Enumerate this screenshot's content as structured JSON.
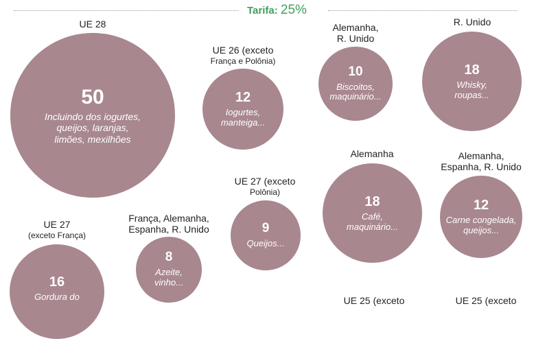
{
  "header": {
    "tarifa_label": "Tarifa:",
    "tarifa_value": "25%"
  },
  "groups": [
    {
      "region_line1": "UE 28",
      "region_line2": "",
      "count": "50",
      "desc_line1": "Incluindo dos iogurtes,",
      "desc_line2": "queijos, laranjas,",
      "desc_line3": "limões, mexilhões"
    },
    {
      "region_line1": "UE 26 (exceto",
      "region_line2": "França e Polônia)",
      "count": "12",
      "desc_line1": "Iogurtes,",
      "desc_line2": "manteiga..."
    },
    {
      "region_line1": "Alemanha,",
      "region_line2": "R. Unido",
      "count": "10",
      "desc_line1": "Biscoitos,",
      "desc_line2": "maquinário..."
    },
    {
      "region_line1": "R. Unido",
      "region_line2": "",
      "count": "18",
      "desc_line1": "Whisky,",
      "desc_line2": "roupas..."
    },
    {
      "region_line1": "UE 27 (exceto",
      "region_line2": "Polônia)",
      "count": "9",
      "desc_line1": "Queijos...",
      "desc_line2": ""
    },
    {
      "region_line1": "Alemanha",
      "region_line2": "",
      "count": "18",
      "desc_line1": "Café,",
      "desc_line2": "maquinário..."
    },
    {
      "region_line1": "Alemanha,",
      "region_line2": "Espanha, R. Unido",
      "count": "12",
      "desc_line1": "Carne congelada,",
      "desc_line2": "queijos..."
    },
    {
      "region_line1": "UE 27",
      "region_line2": "(exceto França)",
      "count": "16",
      "desc_line1": "Gordura do",
      "desc_line2": ""
    },
    {
      "region_line1": "França, Alemanha,",
      "region_line2": "Espanha, R. Unido",
      "count": "8",
      "desc_line1": "Azeite,",
      "desc_line2": "vinho..."
    }
  ],
  "partial_labels": [
    "UE 25 (exceto",
    "UE 25 (exceto"
  ],
  "colors": {
    "bubble": "#a8878f",
    "accent": "#3fa05a"
  }
}
